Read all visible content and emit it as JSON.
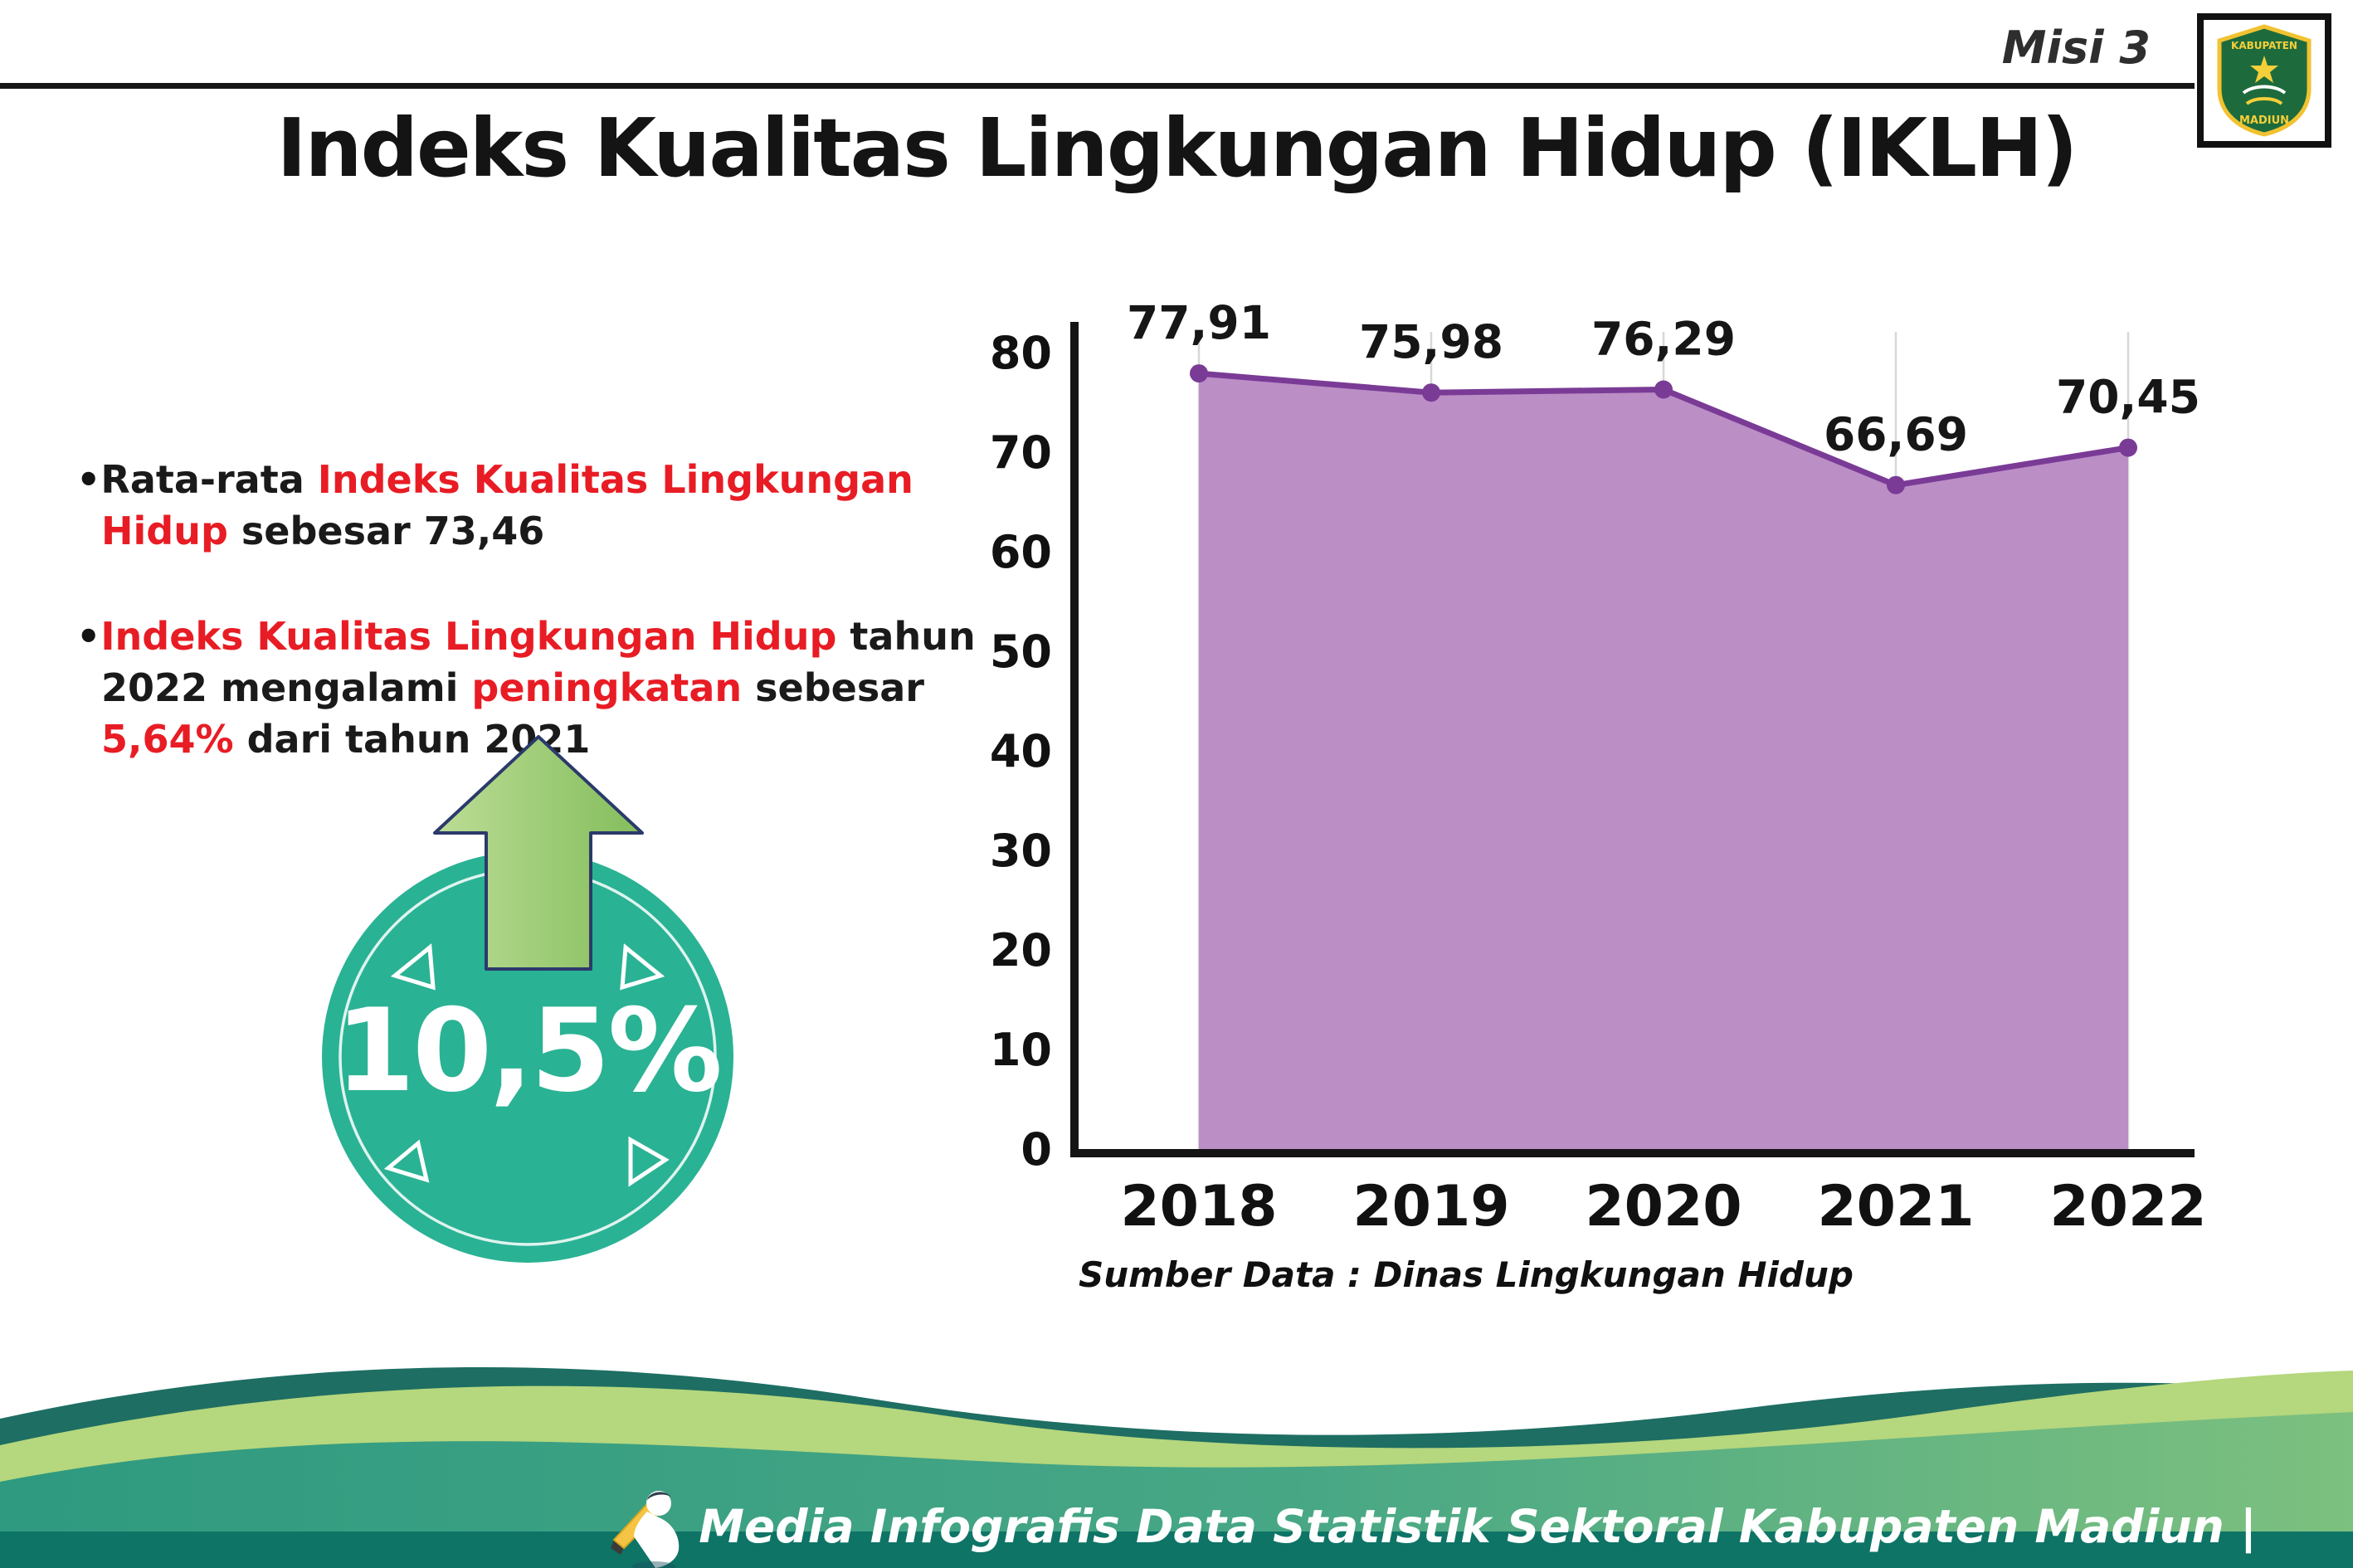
{
  "page": {
    "misi": "Misi 3",
    "title": "Indeks Kualitas Lingkungan Hidup (IKLH)",
    "source": "Sumber Data : Dinas Lingkungan Hidup",
    "footer_text": "Media Infografis Data Statistik Sektoral Kabupaten Madiun |"
  },
  "bullets": [
    {
      "segments": [
        {
          "text": "Rata-rata ",
          "color": "#1a1a1a"
        },
        {
          "text": "Indeks Kualitas Lingkungan Hidup",
          "color": "#e81c24"
        },
        {
          "text": " sebesar 73,46",
          "color": "#1a1a1a"
        }
      ]
    },
    {
      "segments": [
        {
          "text": "Indeks Kualitas Lingkungan Hidup",
          "color": "#e81c24"
        },
        {
          "text": " tahun 2022 mengalami ",
          "color": "#1a1a1a"
        },
        {
          "text": "peningkatan",
          "color": "#e81c24"
        },
        {
          "text": " sebesar ",
          "color": "#1a1a1a"
        },
        {
          "text": "5,64%",
          "color": "#e81c24"
        },
        {
          "text": " dari tahun 2021",
          "color": "#1a1a1a"
        }
      ]
    }
  ],
  "badge": {
    "value": "10,5%",
    "circle_color": "#2ab294",
    "arrow_color": "#a4ce77"
  },
  "chart_data": {
    "type": "area",
    "categories": [
      "2018",
      "2019",
      "2020",
      "2021",
      "2022"
    ],
    "values": [
      77.91,
      75.98,
      76.29,
      66.69,
      70.45
    ],
    "value_labels": [
      "77,91",
      "75,98",
      "76,29",
      "66,69",
      "70,45"
    ],
    "title": "",
    "xlabel": "",
    "ylabel": "",
    "ylim": [
      0,
      80
    ],
    "ytick_interval": 10,
    "fill_color": "#bb8ec6",
    "line_color": "#7a3b96",
    "grid": "vertical-light",
    "legend": "none"
  },
  "logo": {
    "top_text": "KABUPATEN",
    "bottom_text": "MADIUN"
  }
}
